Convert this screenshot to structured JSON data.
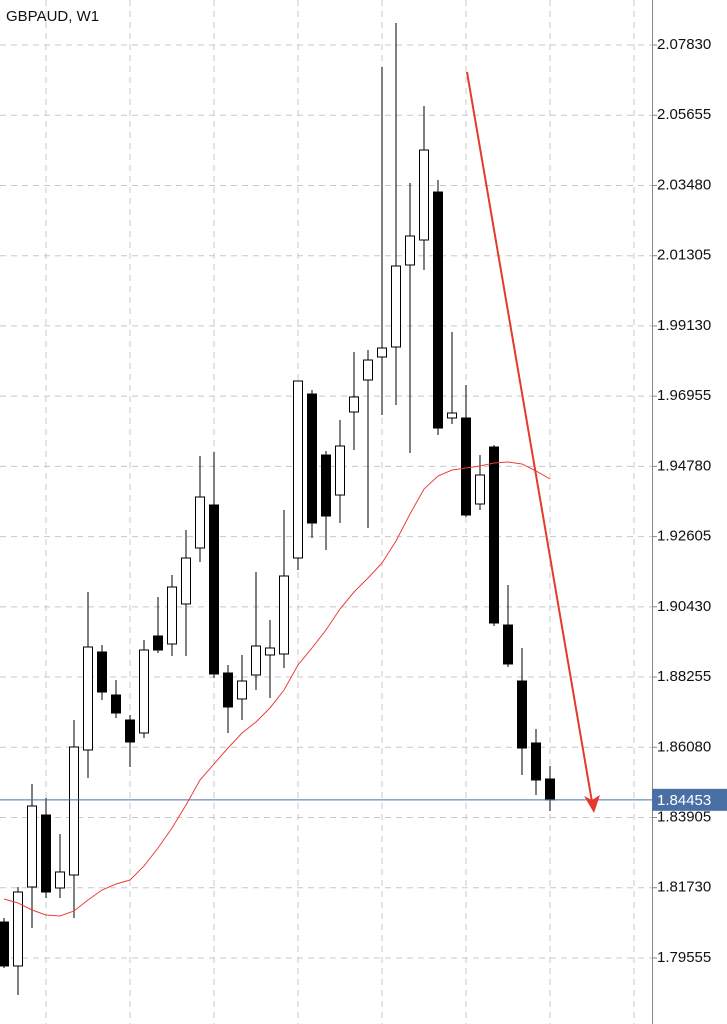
{
  "chart_data": {
    "type": "candlestick",
    "title": "GBPAUD, W1",
    "categories": [
      null,
      null,
      null,
      null,
      null,
      null,
      null,
      null,
      null,
      null,
      null,
      null,
      null,
      null,
      null,
      null,
      null,
      null,
      null,
      null,
      null,
      null,
      null,
      null,
      null,
      null,
      null,
      null,
      null,
      null,
      null,
      null,
      null,
      null,
      null,
      null,
      null,
      null,
      null,
      null
    ],
    "open": [
      1.80669,
      1.79307,
      1.81753,
      1.83983,
      1.81722,
      1.82125,
      1.85996,
      1.89031,
      1.87699,
      1.86925,
      1.86523,
      1.89527,
      1.89279,
      1.90518,
      1.92252,
      1.93584,
      1.88381,
      1.87576,
      1.88319,
      1.88938,
      1.88969,
      1.91942,
      1.97021,
      1.95132,
      1.93893,
      1.96464,
      1.97455,
      1.98167,
      1.98477,
      2.01017,
      2.01791,
      2.03277,
      1.96278,
      1.96278,
      1.93615,
      1.9538,
      1.89867,
      1.88133,
      1.86213,
      1.85098
    ],
    "high": [
      1.80793,
      1.81753,
      1.84943,
      1.8451,
      1.83395,
      1.86925,
      1.90889,
      1.89248,
      1.88164,
      1.8708,
      1.89403,
      1.90735,
      1.91416,
      1.9281,
      1.95101,
      1.95225,
      1.88629,
      1.88938,
      1.91509,
      1.90022,
      1.93429,
      1.97424,
      1.97145,
      1.95256,
      1.96216,
      1.98322,
      1.98384,
      2.07149,
      2.08511,
      2.03556,
      2.05941,
      2.03649,
      1.98942,
      1.973,
      1.95132,
      1.95442,
      1.91106,
      1.89155,
      1.86647,
      1.85501
    ],
    "low": [
      1.79245,
      1.78408,
      1.80483,
      1.81413,
      1.81413,
      1.80793,
      1.85129,
      1.87545,
      1.86987,
      1.8547,
      1.86368,
      1.89,
      1.88907,
      1.88907,
      1.91819,
      1.88226,
      1.86523,
      1.86925,
      1.87854,
      1.87607,
      1.88536,
      1.91571,
      1.92562,
      1.9219,
      1.93026,
      1.95287,
      1.92871,
      1.96371,
      1.96681,
      1.95194,
      2.00862,
      1.95752,
      1.96092,
      1.93212,
      1.93429,
      1.89836,
      1.88567,
      1.85222,
      1.84602,
      1.84107
    ],
    "close": [
      1.79307,
      1.81598,
      1.84262,
      1.81598,
      1.82218,
      1.86089,
      1.89186,
      1.87792,
      1.87142,
      1.86244,
      1.89093,
      1.89093,
      1.91044,
      1.91942,
      1.93832,
      1.8835,
      1.87328,
      1.88133,
      1.89217,
      1.89155,
      1.91385,
      1.97424,
      1.93026,
      1.93243,
      1.95411,
      1.96929,
      1.98074,
      1.98446,
      2.00986,
      2.01915,
      2.04578,
      1.95968,
      1.96433,
      1.93274,
      1.94513,
      1.89929,
      1.8866,
      1.86058,
      1.85067,
      1.84453
    ],
    "up_color": "#ffffff",
    "down_color": "#000000",
    "ma": {
      "color": "#e8413b",
      "values": [
        1.81382,
        1.81258,
        1.81041,
        1.80886,
        1.80855,
        1.8101,
        1.81351,
        1.8166,
        1.81846,
        1.8197,
        1.82404,
        1.82961,
        1.8358,
        1.84293,
        1.85067,
        1.85563,
        1.86058,
        1.86523,
        1.86863,
        1.87297,
        1.87854,
        1.88629,
        1.89155,
        1.89713,
        1.90363,
        1.90889,
        1.91323,
        1.91788,
        1.92469,
        1.93305,
        1.94079,
        1.94482,
        1.94668,
        1.9473,
        1.94792,
        1.94885,
        1.94916,
        1.94854,
        1.94637,
        1.94389
      ]
    },
    "current_price": 1.84453,
    "current_color": "#4a6fa5",
    "ylim": [
      1.7751,
      2.09224
    ],
    "yticks": [
      {
        "value": 2.0783,
        "label": "2.07830"
      },
      2.05655,
      {
        "value": 2.0348,
        "label": "2.03480"
      },
      2.01305,
      {
        "value": 1.9913,
        "label": "1.99130"
      },
      1.96955,
      {
        "value": 1.9478,
        "label": "1.94780"
      },
      1.92605,
      {
        "value": 1.9043,
        "label": "1.90430"
      },
      1.88255,
      {
        "value": 1.8608,
        "label": "1.86080"
      },
      1.83905,
      {
        "value": 1.8173,
        "label": "1.81730"
      },
      1.79555
    ],
    "grid": true
  }
}
